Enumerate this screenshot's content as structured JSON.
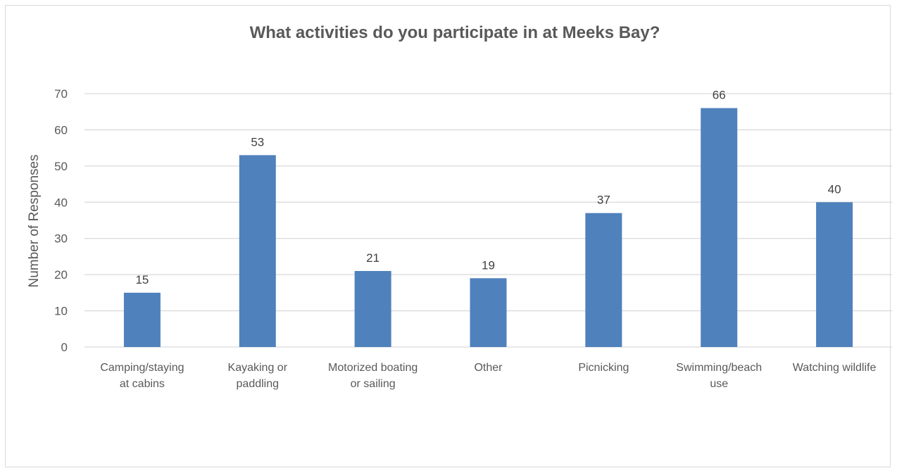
{
  "chart_data": {
    "type": "bar",
    "title": "What activities do you participate in at Meeks Bay?",
    "xlabel": "",
    "ylabel": "Number of Responses",
    "categories": [
      [
        "Camping/staying",
        "at cabins"
      ],
      [
        "Kayaking or",
        "paddling"
      ],
      [
        "Motorized boating",
        "or sailing"
      ],
      [
        "Other"
      ],
      [
        "Picnicking"
      ],
      [
        "Swimming/beach",
        "use"
      ],
      [
        "Watching wildlife"
      ]
    ],
    "values": [
      15,
      53,
      21,
      19,
      37,
      66,
      40
    ],
    "ylim": [
      0,
      70
    ],
    "yticks": [
      0,
      10,
      20,
      30,
      40,
      50,
      60,
      70
    ],
    "grid": true,
    "legend": "none",
    "bar_color": "#4f81bd",
    "grid_color": "#d9d9d9"
  }
}
